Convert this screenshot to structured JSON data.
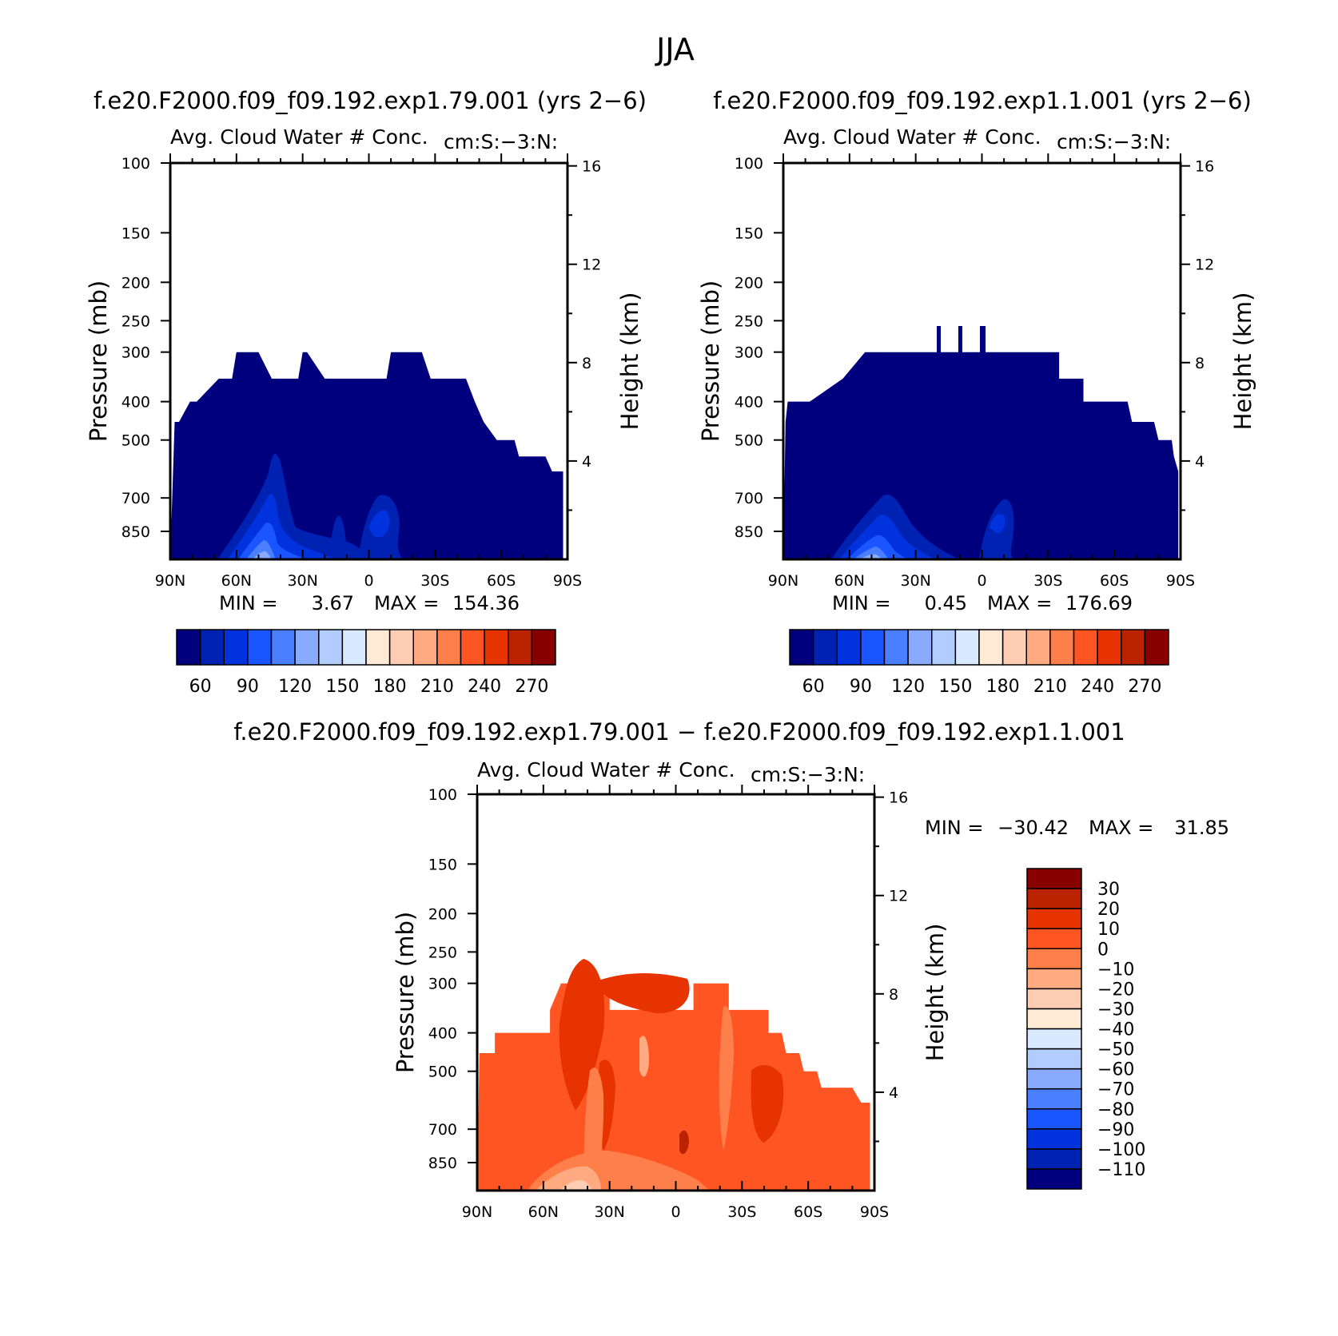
{
  "figure": {
    "title": "JJA"
  },
  "colors": {
    "abs_palette": [
      "#00007f",
      "#0022b3",
      "#0033dd",
      "#1a55ff",
      "#4a80ff",
      "#88aaff",
      "#b3ccff",
      "#d9e9ff",
      "#ffead6",
      "#ffcdb3",
      "#ffaa80",
      "#ff7f4a",
      "#ff5522",
      "#e63300",
      "#bb2200",
      "#880000"
    ],
    "diff_palette": [
      "#00007f",
      "#0022b3",
      "#0033dd",
      "#1a55ff",
      "#4a80ff",
      "#88aaff",
      "#b3ccff",
      "#d9e9ff",
      "#ffead6",
      "#ffcdb3",
      "#ffaa80",
      "#ff7f4a",
      "#ff5522",
      "#e63300",
      "#bb2200",
      "#880000"
    ]
  },
  "chart_data": [
    {
      "type": "heatmap",
      "id": "top-left",
      "case_title": "f.e20.F2000.f09_f09.192.exp1.79.001 (yrs 2−6)",
      "title": "Avg. Cloud Water # Conc.",
      "subtitle": "cm:S:−3:N:",
      "ylabel": "Pressure (mb)",
      "ylabel_right": "Height (km)",
      "x_ticks": [
        "90N",
        "60N",
        "30N",
        "0",
        "30S",
        "60S",
        "90S"
      ],
      "x_values": [
        90,
        60,
        30,
        0,
        -30,
        -60,
        -90
      ],
      "y_ticks": [
        "100",
        "150",
        "200",
        "250",
        "300",
        "400",
        "500",
        "700",
        "850"
      ],
      "y_values": [
        100,
        150,
        200,
        250,
        300,
        400,
        500,
        700,
        850
      ],
      "ylim": [
        100,
        1000
      ],
      "right_ticks": [
        "16",
        "12",
        "8",
        "4"
      ],
      "right_values": [
        16,
        12,
        8,
        4
      ],
      "min_label": "MIN =",
      "min_value": "3.67",
      "max_label": "MAX =",
      "max_value": "154.36",
      "colorbar_labels": [
        "60",
        "90",
        "120",
        "150",
        "180",
        "210",
        "240",
        "270"
      ],
      "colorbar_levels": [
        45,
        60,
        75,
        90,
        105,
        120,
        135,
        150,
        165,
        180,
        195,
        210,
        225,
        240,
        255,
        270
      ],
      "cloud_top": [
        [
          88,
          450
        ],
        [
          86,
          450
        ],
        [
          81,
          400
        ],
        [
          78,
          400
        ],
        [
          68,
          350
        ],
        [
          62,
          350
        ],
        [
          60,
          300
        ],
        [
          50,
          300
        ],
        [
          44,
          350
        ],
        [
          32,
          350
        ],
        [
          30,
          300
        ],
        [
          28,
          300
        ],
        [
          20,
          350
        ],
        [
          -8,
          350
        ],
        [
          -10,
          300
        ],
        [
          -24,
          300
        ],
        [
          -28,
          350
        ],
        [
          -44,
          350
        ],
        [
          -48,
          400
        ],
        [
          -52,
          450
        ],
        [
          -58,
          500
        ],
        [
          -66,
          500
        ],
        [
          -68,
          550
        ],
        [
          -80,
          550
        ],
        [
          -83,
          600
        ],
        [
          -88,
          600
        ],
        [
          -88,
          1000
        ]
      ]
    },
    {
      "type": "heatmap",
      "id": "top-right",
      "case_title": "f.e20.F2000.f09_f09.192.exp1.1.001 (yrs 2−6)",
      "title": "Avg. Cloud Water # Conc.",
      "subtitle": "cm:S:−3:N:",
      "ylabel": "Pressure (mb)",
      "ylabel_right": "Height (km)",
      "x_ticks": [
        "90N",
        "60N",
        "30N",
        "0",
        "30S",
        "60S",
        "90S"
      ],
      "x_values": [
        90,
        60,
        30,
        0,
        -30,
        -60,
        -90
      ],
      "y_ticks": [
        "100",
        "150",
        "200",
        "250",
        "300",
        "400",
        "500",
        "700",
        "850"
      ],
      "y_values": [
        100,
        150,
        200,
        250,
        300,
        400,
        500,
        700,
        850
      ],
      "ylim": [
        100,
        1000
      ],
      "right_ticks": [
        "16",
        "12",
        "8",
        "4"
      ],
      "right_values": [
        16,
        12,
        8,
        4
      ],
      "min_label": "MIN =",
      "min_value": "0.45",
      "max_label": "MAX =",
      "max_value": "176.69",
      "colorbar_labels": [
        "60",
        "90",
        "120",
        "150",
        "180",
        "210",
        "240",
        "270"
      ],
      "colorbar_levels": [
        45,
        60,
        75,
        90,
        105,
        120,
        135,
        150,
        165,
        180,
        195,
        210,
        225,
        240,
        255,
        270
      ],
      "cloud_top": [
        [
          89,
          450
        ],
        [
          88,
          400
        ],
        [
          78,
          400
        ],
        [
          63,
          350
        ],
        [
          53,
          300
        ],
        [
          -35,
          300
        ],
        [
          -35,
          350
        ],
        [
          -46,
          350
        ],
        [
          -46,
          400
        ],
        [
          -66,
          400
        ],
        [
          -68,
          450
        ],
        [
          -78,
          450
        ],
        [
          -80,
          500
        ],
        [
          -86,
          500
        ],
        [
          -87,
          550
        ],
        [
          -89,
          600
        ],
        [
          -89,
          1000
        ]
      ]
    },
    {
      "type": "heatmap",
      "id": "bottom-diff",
      "case_title": "f.e20.F2000.f09_f09.192.exp1.79.001 − f.e20.F2000.f09_f09.192.exp1.1.001",
      "title": "Avg. Cloud Water # Conc.",
      "subtitle": "cm:S:−3:N:",
      "ylabel": "Pressure (mb)",
      "ylabel_right": "Height (km)",
      "x_ticks": [
        "90N",
        "60N",
        "30N",
        "0",
        "30S",
        "60S",
        "90S"
      ],
      "x_values": [
        90,
        60,
        30,
        0,
        -30,
        -60,
        -90
      ],
      "y_ticks": [
        "100",
        "150",
        "200",
        "250",
        "300",
        "400",
        "500",
        "700",
        "850"
      ],
      "y_values": [
        100,
        150,
        200,
        250,
        300,
        400,
        500,
        700,
        850
      ],
      "ylim": [
        100,
        1000
      ],
      "right_ticks": [
        "16",
        "12",
        "8",
        "4"
      ],
      "right_values": [
        16,
        12,
        8,
        4
      ],
      "min_label": "MIN =",
      "min_value": "−30.42",
      "max_label": "MAX =",
      "max_value": "31.85",
      "colorbar_labels": [
        "30",
        "20",
        "10",
        "0",
        "−10",
        "−20",
        "−30",
        "−40",
        "−50",
        "−60",
        "−70",
        "−80",
        "−90",
        "−100",
        "−110"
      ],
      "colorbar_levels": [
        -120,
        -110,
        -100,
        -90,
        -80,
        -70,
        -60,
        -50,
        -40,
        -30,
        -20,
        -10,
        0,
        10,
        20,
        30
      ],
      "cloud_top": [
        [
          89,
          450
        ],
        [
          82,
          450
        ],
        [
          82,
          400
        ],
        [
          57,
          400
        ],
        [
          57,
          350
        ],
        [
          52,
          300
        ],
        [
          30,
          300
        ],
        [
          30,
          350
        ],
        [
          -8,
          350
        ],
        [
          -8,
          300
        ],
        [
          -24,
          300
        ],
        [
          -24,
          350
        ],
        [
          -42,
          350
        ],
        [
          -42,
          400
        ],
        [
          -48,
          400
        ],
        [
          -50,
          450
        ],
        [
          -56,
          450
        ],
        [
          -58,
          500
        ],
        [
          -64,
          500
        ],
        [
          -66,
          550
        ],
        [
          -80,
          550
        ],
        [
          -84,
          600
        ],
        [
          -88,
          600
        ],
        [
          -88,
          1000
        ]
      ]
    }
  ]
}
